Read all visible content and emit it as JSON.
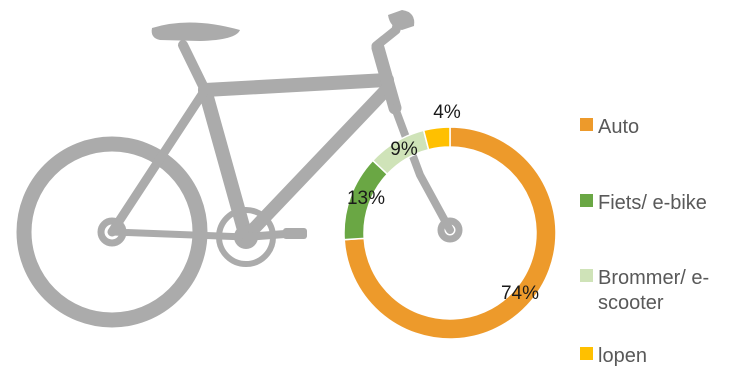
{
  "chart_data": {
    "type": "pie",
    "variant": "donut",
    "title": "",
    "categories": [
      "Auto",
      "Fiets/ e-bike",
      "Brommer/ e-scooter",
      "lopen"
    ],
    "values": [
      74,
      13,
      9,
      4
    ],
    "value_labels": [
      "74%",
      "13%",
      "9%",
      "4%"
    ],
    "colors": [
      "#ED9A2B",
      "#6AA744",
      "#CFE3B8",
      "#FFC000"
    ],
    "legend_position": "right",
    "background_image": "bicycle-silhouette"
  }
}
